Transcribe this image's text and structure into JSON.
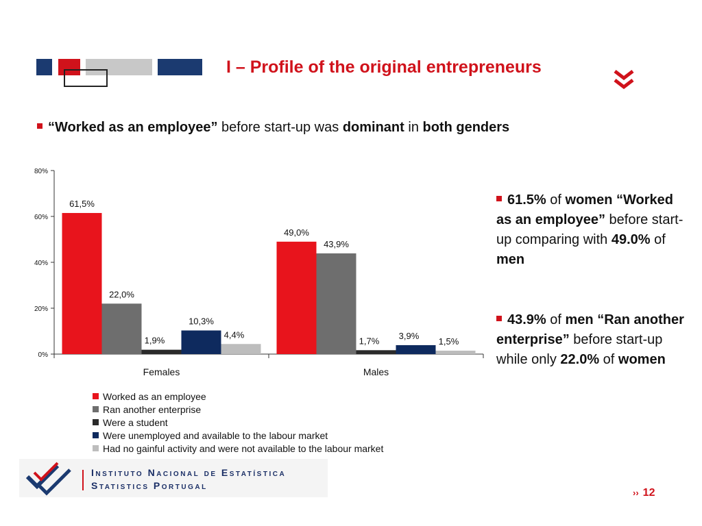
{
  "header": {
    "title": "I – Profile of the original entrepreneurs",
    "blocks": [
      {
        "color": "#1b3a70"
      },
      {
        "color": "#d0121b"
      },
      {
        "color": "#c8c8c8"
      },
      {
        "color": "#1b3a70"
      }
    ],
    "chevron_icon": "double-chevron-down-icon"
  },
  "subtitle": {
    "part1": "“Worked as an employee”",
    "part2": " before start-up was ",
    "part3": "dominant",
    "part4": " in ",
    "part5": "both genders"
  },
  "side_notes": {
    "note1": {
      "p1": "61.5%",
      "p2": " of ",
      "p3": "women “Worked as an employee”",
      "p4": " before start-up comparing with ",
      "p5": "49.0%",
      "p6": " of ",
      "p7": "men"
    },
    "note2": {
      "p1": "43.9%",
      "p2": " of ",
      "p3": "men “Ran another enterprise”",
      "p4": " before start-up while only ",
      "p5": "22.0%",
      "p6": " of ",
      "p7": "women"
    }
  },
  "chart_data": {
    "type": "bar",
    "categories": [
      "Females",
      "Males"
    ],
    "series": [
      {
        "name": "Worked as an employee",
        "values": [
          61.5,
          49.0
        ],
        "labels": [
          "61,5%",
          "49,0%"
        ],
        "color": "#e8141c"
      },
      {
        "name": "Ran another enterprise",
        "values": [
          22.0,
          43.9
        ],
        "labels": [
          "22,0%",
          "43,9%"
        ],
        "color": "#6e6e6e"
      },
      {
        "name": "Were a student",
        "values": [
          1.9,
          1.7
        ],
        "labels": [
          "1,9%",
          "1,7%"
        ],
        "color": "#2a2a2a"
      },
      {
        "name": "Were unemployed and available to the labour market",
        "values": [
          10.3,
          3.9
        ],
        "labels": [
          "10,3%",
          "3,9%"
        ],
        "color": "#0e2a5e"
      },
      {
        "name": "Had no gainful activity and were not available to the labour market",
        "values": [
          4.4,
          1.5
        ],
        "labels": [
          "4,4%",
          "1,5%"
        ],
        "color": "#bdbdbd"
      }
    ],
    "ylim": [
      0,
      80
    ],
    "yticks": [
      "0%",
      "20%",
      "40%",
      "60%",
      "80%"
    ],
    "legend_position": "bottom"
  },
  "footer": {
    "org_line1": "Instituto Nacional de Estatística",
    "org_line2": "Statistics Portugal",
    "page_arrows": "››",
    "page_number": "12"
  }
}
